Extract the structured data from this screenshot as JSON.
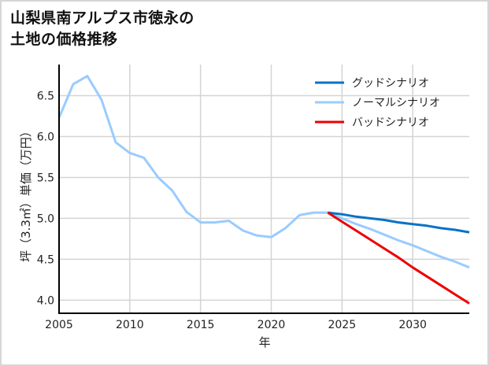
{
  "title": {
    "line1": "山梨県南アルプス市徳永の",
    "line2": "土地の価格推移"
  },
  "chart_data": {
    "type": "line",
    "title": "山梨県南アルプス市徳永の土地の価格推移",
    "xlabel": "年",
    "ylabel": "坪（3.3㎡）単価（万円）",
    "xlim": [
      2005,
      2034
    ],
    "ylim": [
      3.84,
      6.88
    ],
    "xticks": [
      2005,
      2010,
      2015,
      2020,
      2025,
      2030
    ],
    "yticks": [
      4.0,
      4.5,
      5.0,
      5.5,
      6.0,
      6.5
    ],
    "ytick_labels": [
      "4.0",
      "4.5",
      "5.0",
      "5.5",
      "6.0",
      "6.5"
    ],
    "grid": true,
    "legend_position": "upper right",
    "series": [
      {
        "name": "グッドシナリオ",
        "color": "#0a72c8",
        "x": [
          2024,
          2025,
          2026,
          2027,
          2028,
          2029,
          2030,
          2031,
          2032,
          2033,
          2034
        ],
        "values": [
          5.07,
          5.05,
          5.02,
          5.0,
          4.98,
          4.95,
          4.93,
          4.91,
          4.88,
          4.86,
          4.83
        ]
      },
      {
        "name": "ノーマルシナリオ",
        "color": "#99ccff",
        "x": [
          2005,
          2006,
          2007,
          2008,
          2009,
          2010,
          2011,
          2012,
          2013,
          2014,
          2015,
          2016,
          2017,
          2018,
          2019,
          2020,
          2021,
          2022,
          2023,
          2024,
          2025,
          2026,
          2027,
          2028,
          2029,
          2030,
          2031,
          2032,
          2033,
          2034
        ],
        "values": [
          6.23,
          6.64,
          6.74,
          6.45,
          5.93,
          5.8,
          5.74,
          5.5,
          5.34,
          5.08,
          4.95,
          4.95,
          4.97,
          4.85,
          4.79,
          4.77,
          4.88,
          5.04,
          5.07,
          5.07,
          5.0,
          4.93,
          4.87,
          4.8,
          4.73,
          4.67,
          4.6,
          4.53,
          4.47,
          4.4
        ]
      },
      {
        "name": "バッドシナリオ",
        "color": "#ee0000",
        "x": [
          2024,
          2025,
          2026,
          2027,
          2028,
          2029,
          2030,
          2031,
          2032,
          2033,
          2034
        ],
        "values": [
          5.07,
          4.96,
          4.85,
          4.74,
          4.63,
          4.52,
          4.4,
          4.29,
          4.18,
          4.07,
          3.96
        ]
      }
    ]
  }
}
